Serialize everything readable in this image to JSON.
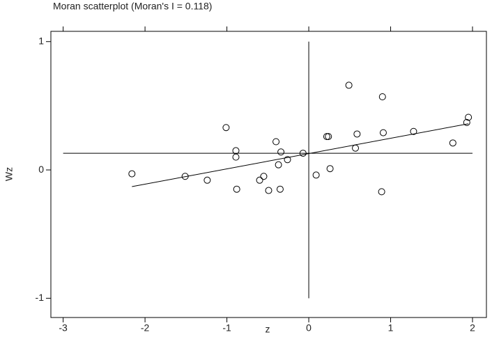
{
  "chart_data": {
    "type": "scatter",
    "title": "Moran scatterplot (Moran's I = 0.118)",
    "x_label": "z",
    "y_label": "Wz",
    "x": [
      -2.16,
      -1.51,
      -1.24,
      -1.01,
      -0.89,
      -0.89,
      -0.88,
      -0.6,
      -0.55,
      -0.49,
      -0.4,
      -0.37,
      -0.34,
      -0.35,
      -0.26,
      -0.07,
      0.09,
      0.22,
      0.24,
      0.26,
      0.49,
      0.59,
      0.57,
      0.9,
      0.91,
      0.89,
      1.28,
      1.76,
      1.93,
      1.95
    ],
    "values": [
      -0.03,
      -0.05,
      -0.08,
      0.33,
      0.15,
      0.1,
      -0.15,
      -0.08,
      -0.05,
      -0.16,
      0.22,
      0.04,
      0.14,
      -0.15,
      0.08,
      0.13,
      -0.04,
      0.26,
      0.26,
      0.01,
      0.66,
      0.28,
      0.17,
      0.57,
      0.29,
      -0.17,
      0.3,
      0.21,
      0.37,
      0.41
    ],
    "fit_line": {
      "x": [
        -2.16,
        1.95
      ],
      "y": [
        -0.13,
        0.36
      ]
    },
    "hline": 0.13,
    "vline": 0,
    "xlim": [
      -3.15,
      2.17
    ],
    "ylim": [
      -1.15,
      1.08
    ],
    "xticks": [
      -3,
      -2,
      -1,
      0,
      1,
      2
    ],
    "yticks": [
      -1,
      0,
      1
    ]
  }
}
